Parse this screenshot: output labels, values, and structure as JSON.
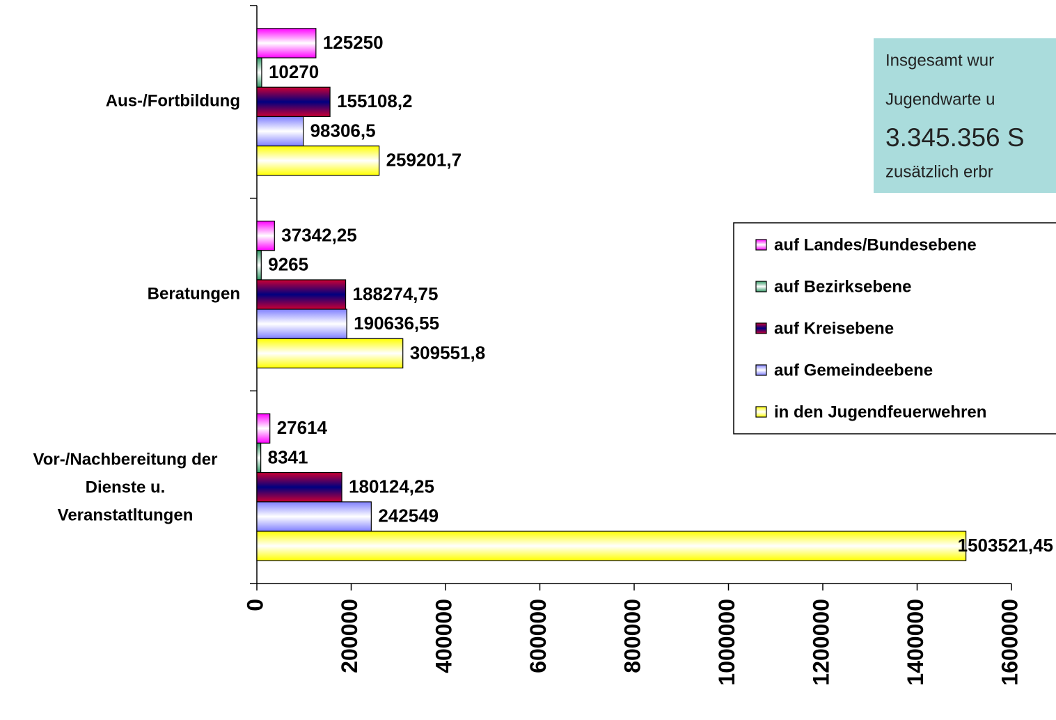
{
  "chart_data": {
    "type": "hbar",
    "categories": [
      "Aus-/Fortbildung",
      "Beratungen",
      "Vor-/Nachbereitung der Dienste u. Veranstatltungen"
    ],
    "series": [
      {
        "name": "auf Landes/Bundesebene",
        "color": "#ff00ff",
        "values": [
          125250,
          37342.25,
          27614
        ],
        "value_labels": [
          "125250",
          "37342,25",
          "27614"
        ]
      },
      {
        "name": "auf Bezirksebene",
        "color": "#339966",
        "values": [
          10270,
          9265,
          8341
        ],
        "value_labels": [
          "10270",
          "9265",
          "8341"
        ]
      },
      {
        "name": "auf Kreisebene",
        "color": "#cc0033",
        "values": [
          155108.2,
          188274.75,
          180124.25
        ],
        "value_labels": [
          "155108,2",
          "188274,75",
          "180124,25"
        ]
      },
      {
        "name": "auf Gemeindeebene",
        "color": "#8080ff",
        "values": [
          98306.5,
          190636.55,
          242549
        ],
        "value_labels": [
          "98306,5",
          "190636,55",
          "242549"
        ]
      },
      {
        "name": "in den Jugendfeuerwehren",
        "color": "#ffff00",
        "values": [
          259201.7,
          309551.8,
          1503521.45
        ],
        "value_labels": [
          "259201,7",
          "309551,8",
          "1503521,45"
        ]
      }
    ],
    "xlim": [
      0,
      1600000
    ],
    "xticks": [
      0,
      200000,
      400000,
      600000,
      800000,
      1000000,
      1200000,
      1400000,
      1600000
    ],
    "legend": "right",
    "annotation": {
      "lines": [
        "Insgesamt wur",
        "Jugendwarte u",
        "3.345.356 S",
        "zusätzlich erbr"
      ]
    }
  }
}
